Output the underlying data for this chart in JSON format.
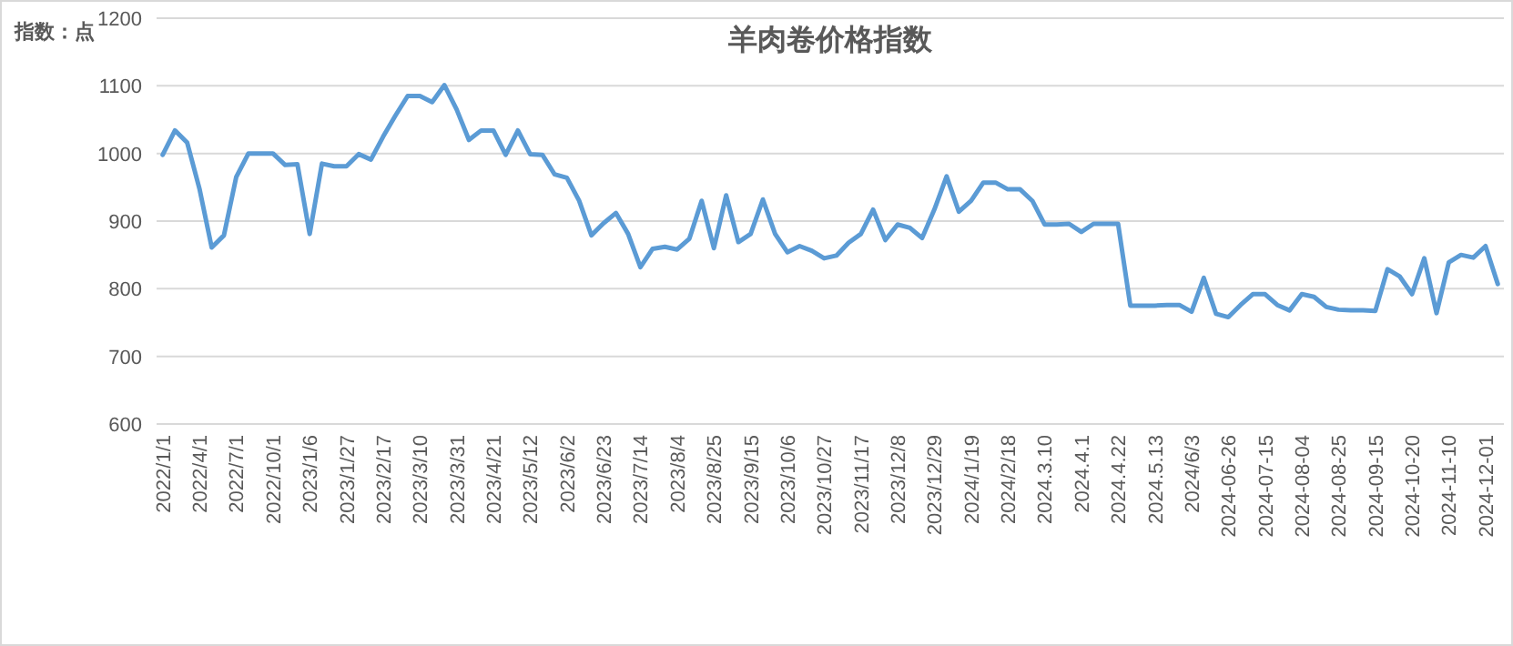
{
  "chart_data": {
    "type": "line",
    "title": "羊肉卷价格指数",
    "ylabel": "指数：点",
    "categories": [
      "2022/1/1",
      null,
      null,
      "2022/4/1",
      null,
      null,
      "2022/7/1",
      null,
      null,
      "2022/10/1",
      null,
      null,
      "2023/1/6",
      null,
      null,
      "2023/1/27",
      null,
      null,
      "2023/2/17",
      null,
      null,
      "2023/3/10",
      null,
      null,
      "2023/3/31",
      null,
      null,
      "2023/4/21",
      null,
      null,
      "2023/5/12",
      null,
      null,
      "2023/6/2",
      null,
      null,
      "2023/6/23",
      null,
      null,
      "2023/7/14",
      null,
      null,
      "2023/8/4",
      null,
      null,
      "2023/8/25",
      null,
      null,
      "2023/9/15",
      null,
      null,
      "2023/10/6",
      null,
      null,
      "2023/10/27",
      null,
      null,
      "2023/11/17",
      null,
      null,
      "2023/12/8",
      null,
      null,
      "2023/12/29",
      null,
      null,
      "2024/1/19",
      null,
      null,
      "2024/2/18",
      null,
      null,
      "2024.3.10",
      null,
      null,
      "2024.4.1",
      null,
      null,
      "2024.4.22",
      null,
      null,
      "2024.5.13",
      null,
      null,
      "2024/6/3",
      null,
      null,
      "2024-06-26",
      null,
      null,
      "2024-07-15",
      null,
      null,
      "2024-08-04",
      null,
      null,
      "2024-08-25",
      null,
      null,
      "2024-09-15",
      null,
      null,
      "2024-10-20",
      null,
      null,
      "2024-11-10",
      null,
      null,
      "2024-12-01",
      null
    ],
    "series": [
      {
        "color": "#5b9bd5",
        "values": [
          998,
          1034,
          1016,
          948,
          861,
          879,
          965,
          1000,
          1000,
          1000,
          983,
          984,
          881,
          985,
          981,
          981,
          999,
          991,
          1025,
          1056,
          1085,
          1085,
          1076,
          1101,
          1065,
          1020,
          1034,
          1034,
          998,
          1034,
          999,
          998,
          969,
          964,
          930,
          879,
          897,
          912,
          881,
          832,
          859,
          862,
          858,
          874,
          930,
          860,
          938,
          869,
          881,
          932,
          881,
          854,
          863,
          856,
          845,
          849,
          868,
          881,
          917,
          872,
          895,
          890,
          875,
          917,
          966,
          914,
          930,
          957,
          957,
          947,
          947,
          930,
          895,
          895,
          896,
          884,
          896,
          896,
          896,
          775,
          775,
          775,
          776,
          776,
          766,
          816,
          763,
          758,
          776,
          792,
          792,
          776,
          768,
          792,
          788,
          773,
          769,
          768,
          768,
          767,
          829,
          818,
          792,
          845,
          764,
          839,
          850,
          846,
          863,
          807
        ]
      }
    ],
    "ylim": [
      600,
      1200
    ],
    "yticks": [
      600,
      700,
      800,
      900,
      1000,
      1100,
      1200
    ],
    "grid": "y"
  }
}
